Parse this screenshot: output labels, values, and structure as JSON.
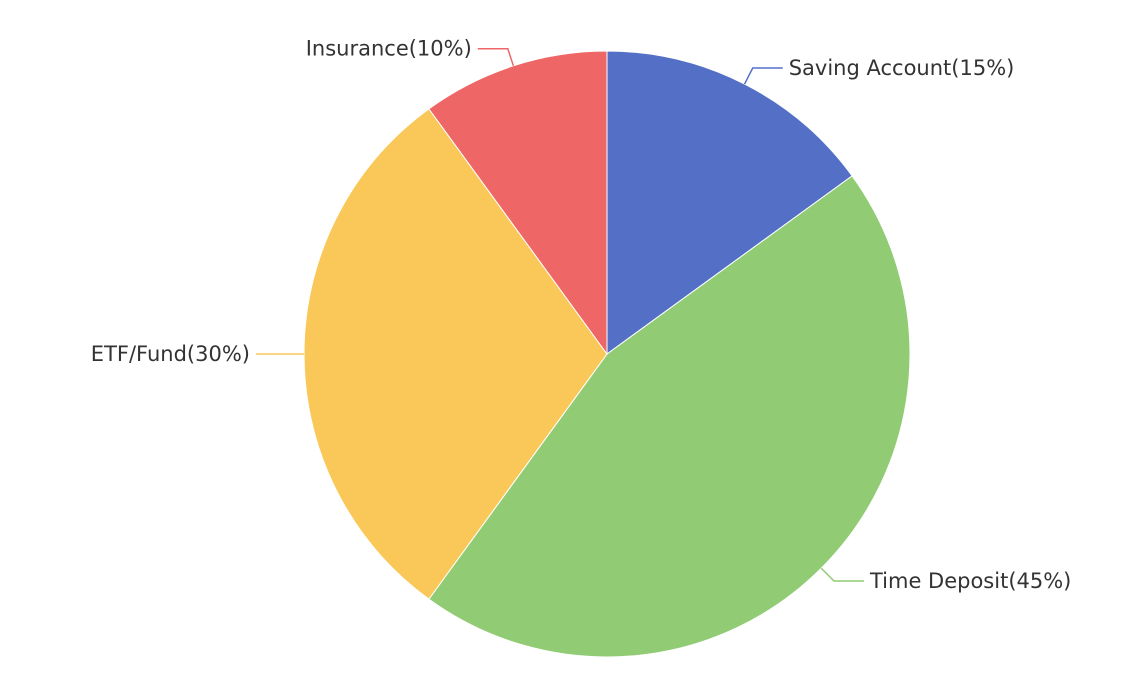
{
  "chart_data": {
    "type": "pie",
    "title": "",
    "slices": [
      {
        "name": "Saving Account",
        "value": 15,
        "label": "Saving Account(15%)",
        "color": "#5470c6"
      },
      {
        "name": "Time Deposit",
        "value": 45,
        "label": "Time Deposit(45%)",
        "color": "#91cc75"
      },
      {
        "name": "ETF/Fund",
        "value": 30,
        "label": "ETF/Fund(30%)",
        "color": "#fac858"
      },
      {
        "name": "Insurance",
        "value": 10,
        "label": "Insurance(10%)",
        "color": "#ee6666"
      }
    ],
    "start_angle": "top",
    "direction": "clockwise",
    "label_style": "outside with leader lines"
  }
}
